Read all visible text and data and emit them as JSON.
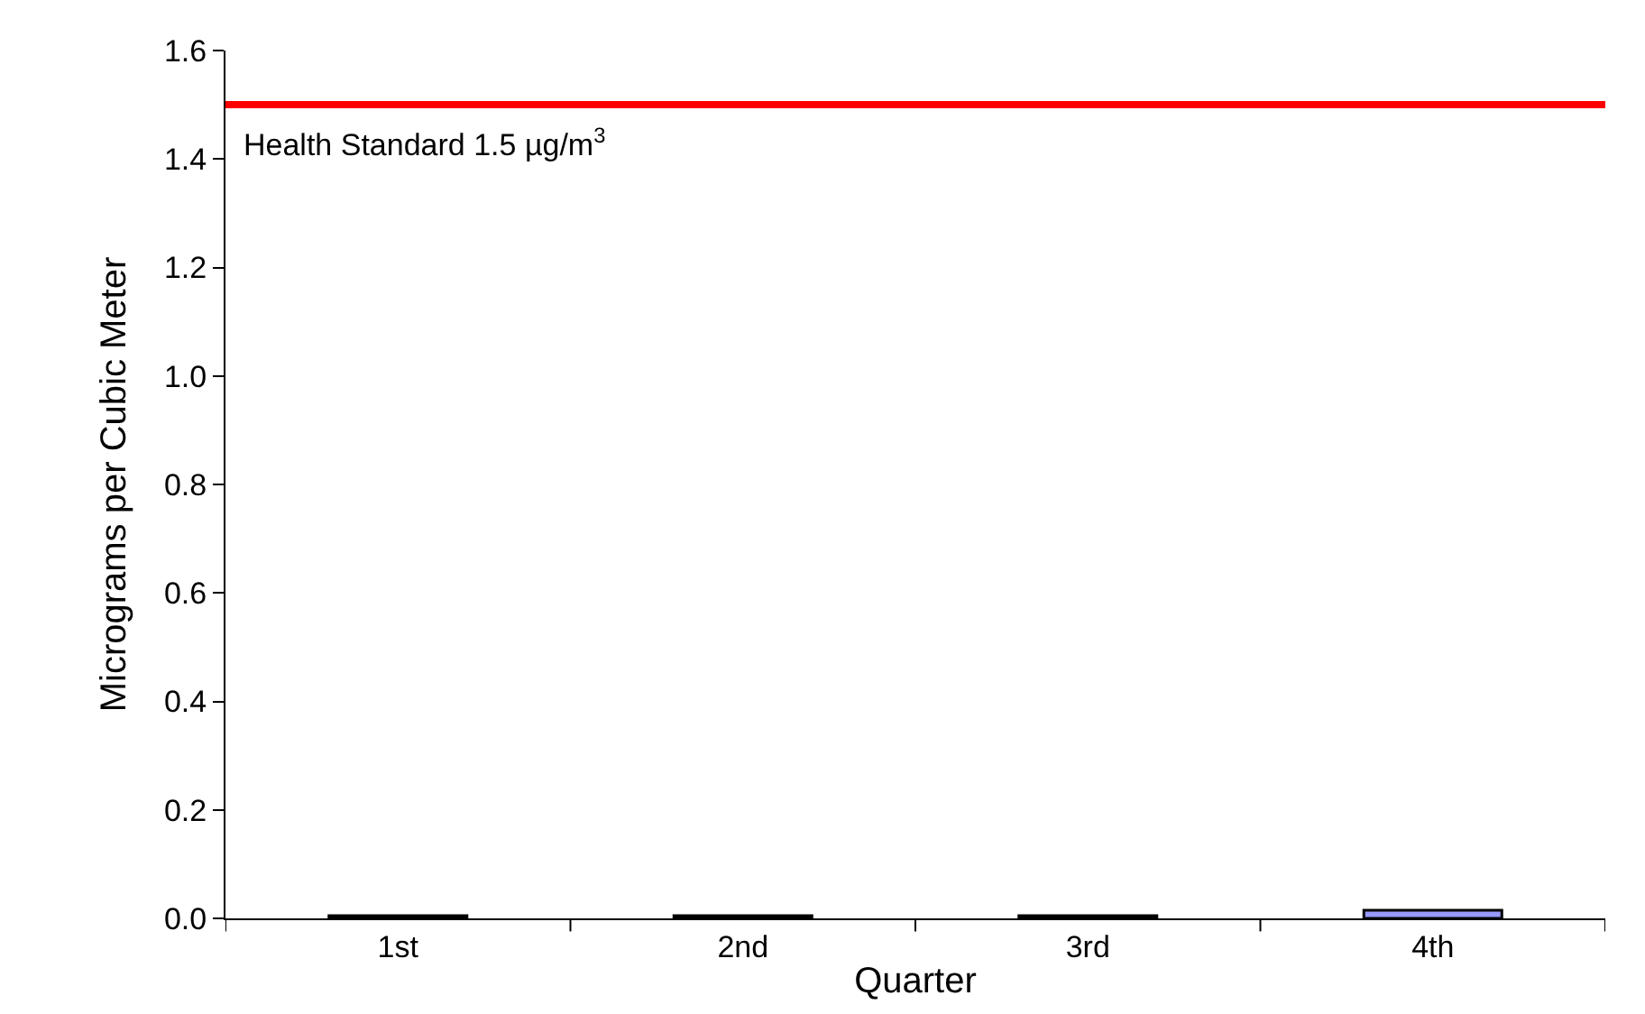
{
  "chart_data": {
    "type": "bar",
    "xlabel": "Quarter",
    "ylabel": "Micrograms per Cubic Meter",
    "categories": [
      "1st",
      "2nd",
      "3rd",
      "4th"
    ],
    "values": [
      0.005,
      0.005,
      0.005,
      0.015
    ],
    "colors": [
      "#000000",
      "#000000",
      "#000000",
      "#9999ff"
    ],
    "ylim": [
      0,
      1.6
    ],
    "yticks": [
      {
        "value": 0,
        "label": "0.0"
      },
      {
        "value": 0.2,
        "label": "0.2"
      },
      {
        "value": 0.4,
        "label": "0.4"
      },
      {
        "value": 0.6,
        "label": "0.6"
      },
      {
        "value": 0.8,
        "label": "0.8"
      },
      {
        "value": 1.0,
        "label": "1.0"
      },
      {
        "value": 1.2,
        "label": "1.2"
      },
      {
        "value": 1.4,
        "label": "1.4"
      },
      {
        "value": 1.6,
        "label": "1.6"
      }
    ],
    "ref_lines": [
      {
        "axis": "y",
        "value": 1.5,
        "label": "Health Standard 1.5 µg/m$^{3}$",
        "color": "#ff0000"
      }
    ],
    "grid": false
  }
}
